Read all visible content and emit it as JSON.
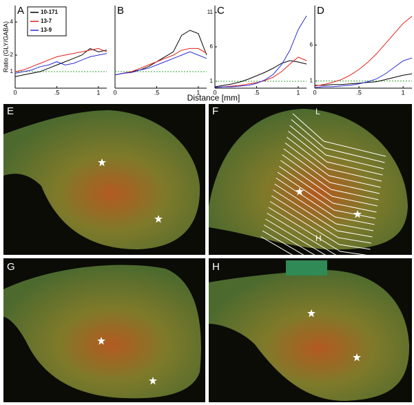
{
  "axis_labels": {
    "x": "Distance [mm]",
    "y": "Ratio (GLY/GABA)"
  },
  "chart_data": [
    {
      "type": "line",
      "title": "A",
      "xlim": [
        0,
        1.1
      ],
      "xticks": [
        0,
        {
          "value": 0.5,
          "label": ".5"
        },
        1
      ],
      "ylim": [
        0,
        5
      ],
      "yticks": [
        1,
        2,
        4
      ],
      "reference_line": 1,
      "reference_color": "#2ca02c",
      "legend": "top-left",
      "x": [
        0,
        0.1,
        0.2,
        0.3,
        0.4,
        0.5,
        0.6,
        0.7,
        0.8,
        0.9,
        1.0,
        1.1
      ],
      "series": [
        {
          "name": "10-171",
          "color": "#000000",
          "values": [
            0.7,
            0.8,
            0.9,
            1.0,
            1.2,
            1.4,
            1.6,
            1.8,
            2.0,
            2.4,
            2.2,
            2.3
          ]
        },
        {
          "name": "13-7",
          "color": "#e0201b",
          "values": [
            1.0,
            1.1,
            1.3,
            1.5,
            1.7,
            1.9,
            2.0,
            2.1,
            2.2,
            2.3,
            2.4,
            2.2
          ]
        },
        {
          "name": "13-9",
          "color": "#2b2bd6",
          "values": [
            0.9,
            1.0,
            1.1,
            1.3,
            1.4,
            1.6,
            1.4,
            1.5,
            1.7,
            1.9,
            2.0,
            2.1
          ]
        }
      ]
    },
    {
      "type": "line",
      "title": "B",
      "xlim": [
        0,
        1.1
      ],
      "xticks": [
        0,
        {
          "value": 0.5,
          "label": ".5"
        },
        1
      ],
      "ylim": [
        0,
        5
      ],
      "reference_line": 1,
      "reference_color": "#2ca02c",
      "x": [
        0,
        0.1,
        0.2,
        0.3,
        0.4,
        0.5,
        0.6,
        0.7,
        0.8,
        0.9,
        1.0,
        1.1
      ],
      "series": [
        {
          "name": "10-171",
          "color": "#000000",
          "values": [
            0.8,
            0.9,
            1.0,
            1.1,
            1.3,
            1.6,
            1.9,
            2.2,
            3.2,
            3.5,
            3.3,
            2.0
          ]
        },
        {
          "name": "13-7",
          "color": "#e0201b",
          "values": [
            0.8,
            0.9,
            1.0,
            1.2,
            1.4,
            1.6,
            1.8,
            2.0,
            2.3,
            2.4,
            2.4,
            2.1
          ]
        },
        {
          "name": "13-9",
          "color": "#2b2bd6",
          "values": [
            0.8,
            0.9,
            0.95,
            1.1,
            1.2,
            1.4,
            1.6,
            1.8,
            2.0,
            2.2,
            2.0,
            1.8
          ]
        }
      ]
    },
    {
      "type": "line",
      "title": "C",
      "xlim": [
        0,
        1.1
      ],
      "xticks": [
        0,
        {
          "value": 0.5,
          "label": ".5"
        },
        1
      ],
      "ylim": [
        0,
        12
      ],
      "yticks": [
        1,
        6,
        11
      ],
      "reference_line": 1,
      "reference_color": "#2ca02c",
      "x": [
        0,
        0.1,
        0.2,
        0.3,
        0.4,
        0.5,
        0.6,
        0.7,
        0.8,
        0.9,
        1.0,
        1.1
      ],
      "series": [
        {
          "name": "10-171",
          "color": "#000000",
          "values": [
            0.2,
            0.4,
            0.6,
            0.9,
            1.3,
            1.8,
            2.3,
            2.9,
            3.6,
            4.0,
            3.8,
            3.5
          ]
        },
        {
          "name": "13-7",
          "color": "#e0201b",
          "values": [
            0.1,
            0.2,
            0.3,
            0.4,
            0.6,
            0.8,
            1.1,
            1.6,
            2.4,
            3.5,
            4.5,
            4.0
          ]
        },
        {
          "name": "13-9",
          "color": "#2b2bd6",
          "values": [
            0.1,
            0.2,
            0.2,
            0.3,
            0.4,
            0.7,
            1.2,
            2.0,
            3.4,
            5.5,
            8.5,
            10.5
          ]
        }
      ]
    },
    {
      "type": "line",
      "title": "D",
      "xlim": [
        0,
        1.1
      ],
      "xticks": [
        0,
        {
          "value": 0.5,
          "label": ".5"
        },
        1
      ],
      "ylim": [
        0,
        11.5
      ],
      "yticks": [
        1,
        6
      ],
      "reference_line": 1,
      "reference_color": "#2ca02c",
      "x": [
        0,
        0.1,
        0.2,
        0.3,
        0.4,
        0.5,
        0.6,
        0.7,
        0.8,
        0.9,
        1.0,
        1.1
      ],
      "series": [
        {
          "name": "10-171",
          "color": "#000000",
          "values": [
            0.4,
            0.4,
            0.5,
            0.5,
            0.6,
            0.7,
            0.8,
            0.9,
            1.2,
            1.5,
            1.8,
            2.0
          ]
        },
        {
          "name": "13-7",
          "color": "#e0201b",
          "values": [
            0.3,
            0.5,
            0.8,
            1.2,
            1.8,
            2.6,
            3.6,
            4.8,
            6.2,
            7.6,
            9.0,
            10.0
          ]
        },
        {
          "name": "13-9",
          "color": "#2b2bd6",
          "values": [
            0.1,
            0.2,
            0.2,
            0.3,
            0.4,
            0.6,
            0.9,
            1.3,
            2.0,
            2.9,
            3.8,
            4.2
          ]
        }
      ]
    }
  ],
  "images": [
    {
      "label": "E"
    },
    {
      "label": "F",
      "annotations": [
        "L",
        "H"
      ]
    },
    {
      "label": "G"
    },
    {
      "label": "H"
    }
  ]
}
